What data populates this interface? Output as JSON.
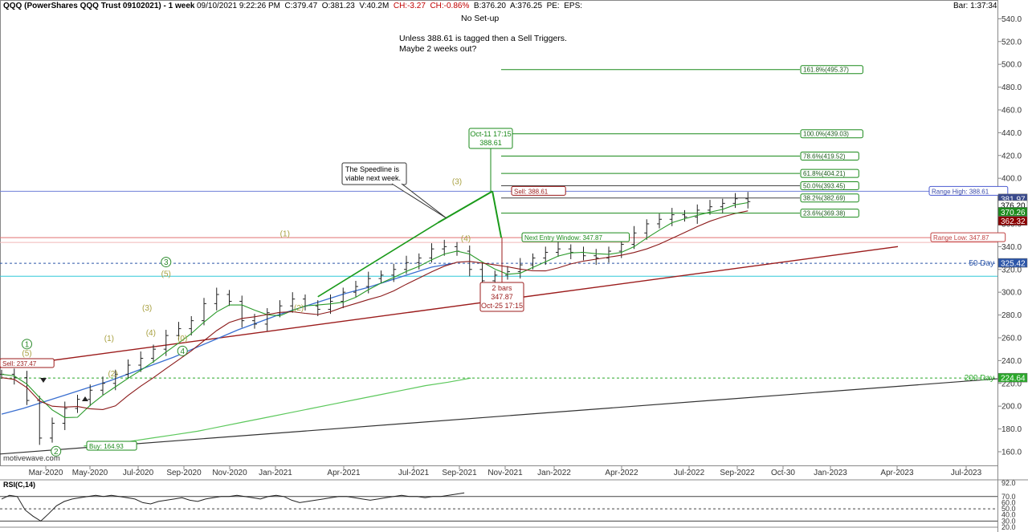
{
  "header": {
    "title": "QQQ (PowerShares QQQ Trust 09102021) - 1 week",
    "datetime": "09/10/2021 9:22:26 PM",
    "close": "C:379.47",
    "open": "O:381.23",
    "volume": "V:40.2M",
    "change": "CH:-3.27",
    "change_pct": "CH:-0.86%",
    "bid": "B:376.20",
    "ask": "A:376.25",
    "pe": "PE:",
    "eps": "EPS:",
    "bar_time": "Bar: 1:37:34"
  },
  "notes": {
    "setup": "No Set-up",
    "line1": "Unless 388.61 is tagged then a Sell Triggers.",
    "line2": "Maybe 2 weeks out?",
    "speedline": [
      "The Speedline is",
      "viable next week."
    ],
    "watermark": "motivewave.com"
  },
  "callouts": {
    "target_top": [
      "Oct-11 17:15",
      "388.61"
    ],
    "target_bottom": [
      "2 bars",
      "347.87",
      "Oct-25 17:15"
    ],
    "sell_237": "Sell: 237.47",
    "sell_388": "Sell: 388.61",
    "buy_164": "Buy: 164.93",
    "next_entry": "Next Entry Window: 347.87",
    "range_high": "Range High: 388.61",
    "range_low": "Range Low: 347.87",
    "day50": "50 Day",
    "day200": "200 Day"
  },
  "fibs": [
    {
      "label": "161.8%(495.37)",
      "value": 495.37
    },
    {
      "label": "100.0%(439.03)",
      "value": 439.03
    },
    {
      "label": "78.6%(419.52)",
      "value": 419.52
    },
    {
      "label": "61.8%(404.21)",
      "value": 404.21
    },
    {
      "label": "50.0%(393.45)",
      "value": 393.45
    },
    {
      "label": "38.2%(382.69)",
      "value": 382.69
    },
    {
      "label": "23.6%(369.38)",
      "value": 369.38
    }
  ],
  "price_badges": [
    {
      "text": "381.97",
      "value": 381.97,
      "color": "#3a4a8c"
    },
    {
      "text": "376.20",
      "value": 376.2,
      "color": "#ffffff"
    },
    {
      "text": "370.26",
      "value": 370.26,
      "color": "#1e8c1e"
    },
    {
      "text": "362.32",
      "value": 362.32,
      "color": "#8b0000"
    },
    {
      "text": "325.42",
      "value": 325.42,
      "color": "#2b55a8"
    },
    {
      "text": "224.64",
      "value": 224.64,
      "color": "#2aa82a"
    }
  ],
  "wave_labels": [
    {
      "text": "1",
      "t": 2,
      "v": 252,
      "circle": true,
      "color": "#2a8a2a"
    },
    {
      "text": "(5)",
      "t": 2,
      "v": 244,
      "color": "#a8a040"
    },
    {
      "text": "2",
      "t": 4.3,
      "v": 158,
      "circle": true,
      "color": "#2a8a2a"
    },
    {
      "text": "(1)",
      "t": 8.5,
      "v": 257,
      "color": "#a8a040"
    },
    {
      "text": "(2)",
      "t": 8.8,
      "v": 226,
      "color": "#a8a040"
    },
    {
      "text": "(3)",
      "t": 11.5,
      "v": 284,
      "color": "#a8a040"
    },
    {
      "text": "(4)",
      "t": 11.8,
      "v": 262,
      "color": "#a8a040"
    },
    {
      "text": "3",
      "t": 13,
      "v": 324,
      "circle": true,
      "color": "#2a8a2a"
    },
    {
      "text": "(5)",
      "t": 13,
      "v": 314,
      "color": "#a8a040"
    },
    {
      "text": "(0)",
      "t": 14.3,
      "v": 257,
      "color": "#a8a040"
    },
    {
      "text": "4",
      "t": 14.3,
      "v": 246,
      "circle": true,
      "color": "#2a8a2a"
    },
    {
      "text": "(1)",
      "t": 22.4,
      "v": 349,
      "color": "#a8a040"
    },
    {
      "text": "(2)",
      "t": 23.5,
      "v": 284,
      "color": "#a8a040"
    },
    {
      "text": "(3)",
      "t": 36,
      "v": 395,
      "color": "#a8a040"
    },
    {
      "text": "(4)",
      "t": 36.7,
      "v": 345,
      "color": "#a8a040"
    }
  ],
  "rsi": {
    "label": "RSI(C,14)",
    "ticks": [
      "92.0",
      "70.0",
      "60.0",
      "50.0",
      "40.0",
      "30.0",
      "20.0"
    ]
  },
  "chart_data": {
    "type": "line",
    "title": "",
    "interval": "1 week",
    "x_ticks": [
      "Mar-2020",
      "May-2020",
      "Jul-2020",
      "Sep-2020",
      "Nov-2020",
      "Jan-2021",
      "Apr-2021",
      "Jul-2021",
      "Sep-2021",
      "Nov-2021",
      "Jan-2022",
      "Apr-2022",
      "Jul-2022",
      "Sep-2022",
      "Oct-30",
      "Jan-2023",
      "Apr-2023",
      "Jul-2023"
    ],
    "y_ticks": [
      160,
      180,
      200,
      220,
      240,
      260,
      280,
      300,
      320,
      340,
      360,
      380,
      400,
      420,
      440,
      460,
      480,
      500,
      520,
      540
    ],
    "ylim": [
      148,
      548
    ],
    "series": [
      {
        "name": "50 Day",
        "values": [
          193,
          198,
          204,
          210,
          216,
          222,
          229,
          236,
          243,
          251,
          259,
          267,
          274,
          281,
          287,
          293,
          299,
          304,
          310,
          316,
          322,
          325.4
        ]
      },
      {
        "name": "200 Day",
        "values": [
          165,
          167,
          169,
          172,
          175,
          178,
          182,
          186,
          190,
          194,
          198,
          202,
          206,
          210,
          214,
          218,
          221,
          224.6
        ]
      }
    ],
    "price_close": [
      228,
      225,
      205,
      172,
      185,
      198,
      206,
      214,
      220,
      228,
      236,
      242,
      250,
      262,
      268,
      275,
      290,
      298,
      292,
      275,
      272,
      282,
      288,
      294,
      288,
      285,
      292,
      300,
      305,
      312,
      315,
      320,
      326,
      330,
      338,
      340,
      336,
      320,
      310,
      315,
      318,
      324,
      330,
      335,
      338,
      335,
      332,
      330,
      336,
      342,
      352,
      360,
      364,
      368,
      366,
      372,
      375,
      378,
      382,
      379.5
    ],
    "range_high": 388.61,
    "range_low": 347.87
  }
}
